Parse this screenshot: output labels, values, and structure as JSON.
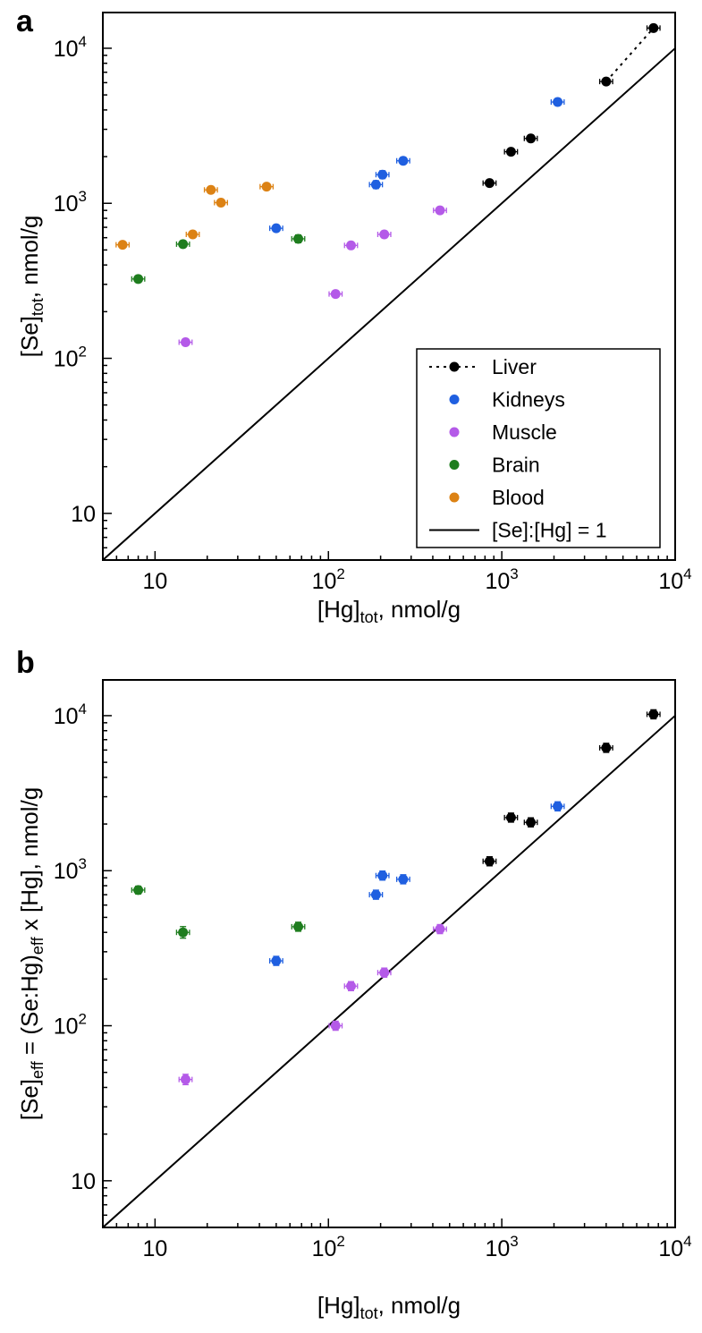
{
  "colors": {
    "liver": "#000000",
    "kidneys": "#1f5fe0",
    "muscle": "#b45ae8",
    "brain": "#1e7d1e",
    "blood": "#dc8214",
    "line": "#000000"
  },
  "chart_data": [
    {
      "panel": "a",
      "type": "scatter",
      "xscale": "log",
      "yscale": "log",
      "xlim": [
        5,
        10000
      ],
      "ylim": [
        5,
        17000
      ],
      "x_ticks": [
        {
          "value": 10,
          "base": "10",
          "exp": ""
        },
        {
          "value": 100,
          "base": "10",
          "exp": "2"
        },
        {
          "value": 1000,
          "base": "10",
          "exp": "3"
        },
        {
          "value": 10000,
          "base": "10",
          "exp": "4"
        }
      ],
      "y_ticks": [
        {
          "value": 10,
          "base": "10",
          "exp": ""
        },
        {
          "value": 100,
          "base": "10",
          "exp": "2"
        },
        {
          "value": 1000,
          "base": "10",
          "exp": "3"
        },
        {
          "value": 10000,
          "base": "10",
          "exp": "4"
        }
      ],
      "xlabel": {
        "main": "[Hg]",
        "sub": "tot",
        "rest": ", nmol/g"
      },
      "ylabel": {
        "main": "[Se]",
        "sub": "tot",
        "rest": ", nmol/g"
      },
      "legend": {
        "position": "lower-right",
        "entries": [
          {
            "key": "liver",
            "label": "Liver",
            "style": "dotted-marker"
          },
          {
            "key": "kidneys",
            "label": "Kidneys",
            "style": "marker"
          },
          {
            "key": "muscle",
            "label": "Muscle",
            "style": "marker"
          },
          {
            "key": "brain",
            "label": "Brain",
            "style": "marker"
          },
          {
            "key": "blood",
            "label": "Blood",
            "style": "marker"
          },
          {
            "key": "line",
            "label": "[Se]:[Hg] = 1",
            "style": "line"
          }
        ]
      },
      "reference_line": {
        "label": "[Se]:[Hg] = 1",
        "slope": 1
      },
      "dotted_fit": {
        "series": "liver",
        "x": [
          1500,
          7500
        ]
      },
      "series": [
        {
          "key": "liver",
          "label": "Liver",
          "points": [
            {
              "x": 850,
              "y": 1350,
              "ey": 0.05
            },
            {
              "x": 1130,
              "y": 2150,
              "ey": 0.05
            },
            {
              "x": 1470,
              "y": 2620,
              "ey": 0.05
            },
            {
              "x": 4000,
              "y": 6100,
              "ey": 0.05
            },
            {
              "x": 7500,
              "y": 13500,
              "ey": 0.05
            }
          ]
        },
        {
          "key": "kidneys",
          "label": "Kidneys",
          "points": [
            {
              "x": 50,
              "y": 690,
              "ey": 0.05
            },
            {
              "x": 188,
              "y": 1320,
              "ey": 0.06
            },
            {
              "x": 205,
              "y": 1530,
              "ey": 0.06
            },
            {
              "x": 270,
              "y": 1880,
              "ey": 0.05
            },
            {
              "x": 2100,
              "y": 4500,
              "ey": 0.05
            }
          ]
        },
        {
          "key": "muscle",
          "label": "Muscle",
          "points": [
            {
              "x": 15,
              "y": 127,
              "ey": 0.05
            },
            {
              "x": 110,
              "y": 260,
              "ey": 0.05
            },
            {
              "x": 135,
              "y": 535,
              "ey": 0.05
            },
            {
              "x": 210,
              "y": 630,
              "ey": 0.05
            },
            {
              "x": 440,
              "y": 900,
              "ey": 0.05
            }
          ]
        },
        {
          "key": "brain",
          "label": "Brain",
          "points": [
            {
              "x": 8,
              "y": 325,
              "ey": 0.05
            },
            {
              "x": 14.5,
              "y": 545,
              "ey": 0.05
            },
            {
              "x": 67,
              "y": 590,
              "ey": 0.06
            }
          ]
        },
        {
          "key": "blood",
          "label": "Blood",
          "points": [
            {
              "x": 6.5,
              "y": 540,
              "ey": 0.04
            },
            {
              "x": 16.5,
              "y": 630,
              "ey": 0.04
            },
            {
              "x": 21,
              "y": 1220,
              "ey": 0.04
            },
            {
              "x": 24,
              "y": 1010,
              "ey": 0.04
            },
            {
              "x": 44,
              "y": 1280,
              "ey": 0.04
            }
          ]
        }
      ]
    },
    {
      "panel": "b",
      "type": "scatter",
      "xscale": "log",
      "yscale": "log",
      "xlim": [
        5,
        10000
      ],
      "ylim": [
        5,
        17000
      ],
      "x_ticks": [
        {
          "value": 10,
          "base": "10",
          "exp": ""
        },
        {
          "value": 100,
          "base": "10",
          "exp": "2"
        },
        {
          "value": 1000,
          "base": "10",
          "exp": "3"
        },
        {
          "value": 10000,
          "base": "10",
          "exp": "4"
        }
      ],
      "y_ticks": [
        {
          "value": 10,
          "base": "10",
          "exp": ""
        },
        {
          "value": 100,
          "base": "10",
          "exp": "2"
        },
        {
          "value": 1000,
          "base": "10",
          "exp": "3"
        },
        {
          "value": 10000,
          "base": "10",
          "exp": "4"
        }
      ],
      "xlabel": {
        "main": "[Hg]",
        "sub": "tot",
        "rest": ", nmol/g"
      },
      "ylabel": {
        "p1": "[Se]",
        "s1": "eff",
        "p2": " = (Se:Hg)",
        "s2": "eff",
        "p3": " x [Hg], nmol/g"
      },
      "reference_line": {
        "label": "[Se]:[Hg] = 1",
        "slope": 1
      },
      "series": [
        {
          "key": "liver",
          "label": "Liver",
          "points": [
            {
              "x": 850,
              "y": 1150,
              "ey": 0.07
            },
            {
              "x": 1130,
              "y": 2200,
              "ey": 0.07
            },
            {
              "x": 1470,
              "y": 2050,
              "ey": 0.07
            },
            {
              "x": 4000,
              "y": 6200,
              "ey": 0.07
            },
            {
              "x": 7500,
              "y": 10200,
              "ey": 0.07
            }
          ]
        },
        {
          "key": "kidneys",
          "label": "Kidneys",
          "points": [
            {
              "x": 50,
              "y": 262,
              "ey": 0.07
            },
            {
              "x": 188,
              "y": 700,
              "ey": 0.07
            },
            {
              "x": 205,
              "y": 930,
              "ey": 0.07
            },
            {
              "x": 270,
              "y": 880,
              "ey": 0.07
            },
            {
              "x": 2100,
              "y": 2600,
              "ey": 0.07
            }
          ]
        },
        {
          "key": "muscle",
          "label": "Muscle",
          "points": [
            {
              "x": 15,
              "y": 45,
              "ey": 0.08
            },
            {
              "x": 110,
              "y": 100,
              "ey": 0.07
            },
            {
              "x": 135,
              "y": 180,
              "ey": 0.07
            },
            {
              "x": 210,
              "y": 220,
              "ey": 0.07
            },
            {
              "x": 440,
              "y": 420,
              "ey": 0.07
            }
          ]
        },
        {
          "key": "brain",
          "label": "Brain",
          "points": [
            {
              "x": 8,
              "y": 750,
              "ey": 0.06
            },
            {
              "x": 14.5,
              "y": 400,
              "ey": 0.09
            },
            {
              "x": 67,
              "y": 435,
              "ey": 0.07
            }
          ]
        }
      ]
    }
  ]
}
